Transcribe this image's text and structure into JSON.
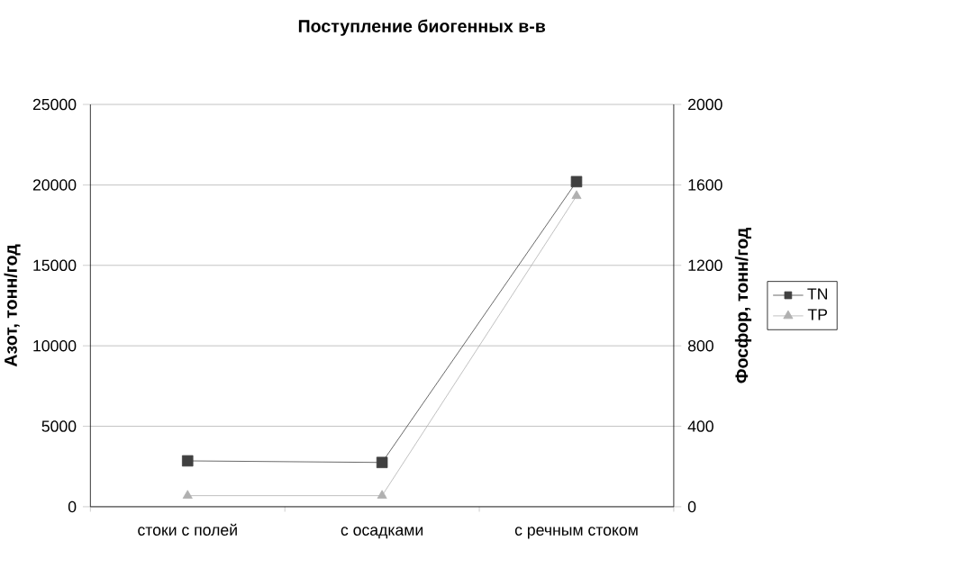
{
  "chart_data": {
    "type": "line",
    "title": "Поступление биогенных в-в",
    "categories": [
      "стоки с полей",
      "с осадками",
      "с речным стоком"
    ],
    "ylabel": "Азот, тонн/год",
    "y2label": "Фосфор, тонн/год",
    "ylim": [
      0,
      25000
    ],
    "yticks": [
      0,
      5000,
      10000,
      15000,
      20000,
      25000
    ],
    "y2lim": [
      0,
      2000
    ],
    "y2ticks": [
      0,
      400,
      800,
      1200,
      1600,
      2000
    ],
    "grid": "y",
    "legend": "right",
    "series": [
      {
        "name": "TN",
        "color": "#404040",
        "marker": "square",
        "values": [
          2850,
          2750,
          20200
        ]
      },
      {
        "name": "TP",
        "color": "#b0b0b0",
        "marker": "triangle",
        "axis": "y2",
        "values": [
          55,
          55,
          1545
        ]
      }
    ]
  }
}
